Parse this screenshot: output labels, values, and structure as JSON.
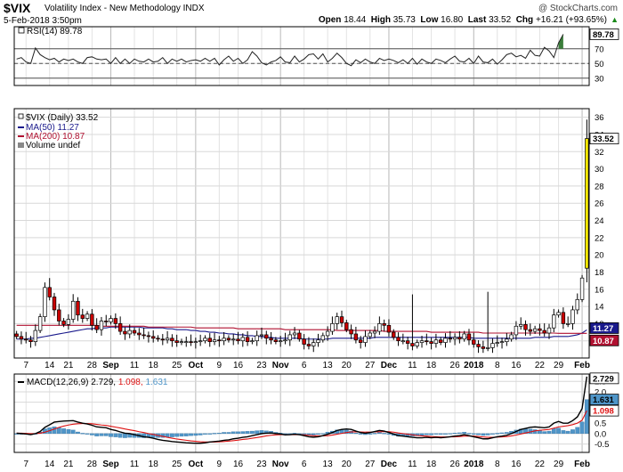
{
  "header": {
    "symbol": "$VIX",
    "name": "Volatility Index - New Methodology",
    "exchange": "INDX",
    "date": "5-Feb-2018 3:50pm",
    "watermark": "@ StockCharts.com",
    "open_label": "Open",
    "open": "18.44",
    "high_label": "High",
    "high": "35.73",
    "low_label": "Low",
    "low": "16.80",
    "last_label": "Last",
    "last": "33.52",
    "chg_label": "Chg",
    "chg": "+16.21 (+93.65%)",
    "chg_arrow": "▲"
  },
  "chart_data": [
    {
      "type": "line",
      "panel": "rsi",
      "legend": "RSI(14) 89.78",
      "last_value_label": "89.78",
      "y_ticks": [
        30,
        50,
        70
      ],
      "ylim": [
        20,
        100
      ],
      "overbought": 70,
      "oversold": 30,
      "values": [
        56,
        58,
        52,
        50,
        71,
        62,
        58,
        55,
        57,
        52,
        56,
        54,
        56,
        52,
        50,
        58,
        59,
        56,
        55,
        56,
        50,
        58,
        50,
        56,
        50,
        56,
        53,
        52,
        56,
        52,
        53,
        58,
        50,
        56,
        53,
        56,
        52,
        54,
        55,
        53,
        57,
        53,
        57,
        48,
        55,
        60,
        53,
        57,
        50,
        55,
        66,
        60,
        51,
        48,
        52,
        54,
        59,
        52,
        51,
        60,
        52,
        56,
        62,
        63,
        56,
        63,
        52,
        57,
        64,
        58,
        50,
        47,
        55,
        51,
        56,
        52,
        50,
        57,
        54,
        56,
        54,
        51,
        55,
        50,
        57,
        49,
        56,
        52,
        50,
        56,
        54,
        51,
        56,
        60,
        53,
        52,
        57,
        50,
        60,
        52,
        51,
        56,
        49,
        55,
        62,
        64,
        59,
        61,
        57,
        68,
        61,
        60,
        72,
        67,
        58,
        78,
        89.78
      ],
      "colors": {
        "line": "#222222",
        "overbought_fill": "#3a7d3a",
        "ref": "#555555"
      }
    },
    {
      "type": "candlestick",
      "panel": "price",
      "title": "$VIX (Daily) 33.52",
      "last_value_label": "33.52",
      "y_ticks": [
        10,
        12,
        14,
        16,
        18,
        20,
        22,
        24,
        26,
        28,
        30,
        32,
        34,
        36
      ],
      "ylim": [
        8,
        37
      ],
      "x_labels": [
        "7",
        "14",
        "21",
        "28",
        "Sep",
        "11",
        "18",
        "25",
        "Oct",
        "9",
        "16",
        "23",
        "Nov",
        "6",
        "13",
        "20",
        "27",
        "Dec",
        "11",
        "18",
        "26",
        "2018",
        "8",
        "16",
        "22",
        "29",
        "Feb"
      ],
      "close": [
        10.5,
        10.2,
        10.1,
        9.9,
        11.2,
        12.8,
        16.2,
        15.1,
        13.6,
        12.3,
        11.9,
        12.5,
        14.6,
        13.0,
        12.6,
        13.1,
        11.8,
        11.3,
        12.3,
        12.2,
        12.6,
        12.0,
        11.1,
        10.8,
        11.2,
        10.9,
        10.7,
        10.6,
        10.5,
        10.3,
        10.2,
        10.1,
        10.3,
        10.0,
        9.8,
        9.9,
        9.9,
        9.8,
        9.9,
        10.0,
        10.3,
        9.9,
        10.1,
        10.0,
        10.3,
        10.1,
        10.2,
        10.0,
        10.4,
        9.9,
        10.0,
        10.6,
        10.7,
        10.3,
        10.1,
        9.9,
        10.0,
        10.1,
        10.7,
        10.9,
        10.2,
        9.6,
        9.4,
        9.8,
        10.1,
        10.6,
        11.1,
        12.0,
        12.8,
        12.1,
        11.3,
        10.8,
        10.1,
        9.8,
        10.5,
        10.9,
        11.1,
        12.0,
        11.8,
        11.0,
        10.4,
        10.0,
        10.0,
        9.7,
        9.4,
        9.8,
        10.0,
        9.9,
        9.7,
        10.1,
        9.8,
        10.3,
        10.2,
        10.4,
        10.2,
        10.8,
        10.1,
        9.6,
        9.3,
        9.1,
        9.2,
        9.7,
        9.8,
        9.9,
        10.2,
        10.7,
        11.7,
        11.9,
        11.3,
        11.1,
        11.4,
        11.2,
        10.9,
        11.5,
        13.0,
        13.3,
        12.0,
        12.0,
        13.6,
        14.8,
        17.3,
        33.52
      ],
      "open_first": 10.8,
      "series": [
        {
          "name": "MA(50)",
          "label": "MA(50) 11.27",
          "last_value_label": "11.27",
          "color": "#1a1a8c",
          "values": [
            10.2,
            10.2,
            10.2,
            10.3,
            10.3,
            10.4,
            10.5,
            10.6,
            10.7,
            10.8,
            10.9,
            11.0,
            11.1,
            11.2,
            11.3,
            11.4,
            11.4,
            11.5,
            11.5,
            11.5,
            11.6,
            11.6,
            11.6,
            11.6,
            11.6,
            11.6,
            11.6,
            11.5,
            11.5,
            11.5,
            11.5,
            11.5,
            11.4,
            11.4,
            11.3,
            11.3,
            11.3,
            11.2,
            11.2,
            11.1,
            11.1,
            11.0,
            11.0,
            10.9,
            10.9,
            10.8,
            10.8,
            10.7,
            10.7,
            10.6,
            10.6,
            10.5,
            10.5,
            10.4,
            10.4,
            10.3,
            10.3,
            10.3,
            10.3,
            10.3,
            10.3,
            10.2,
            10.2,
            10.2,
            10.2,
            10.2,
            10.2,
            10.3,
            10.3,
            10.3,
            10.3,
            10.3,
            10.3,
            10.3,
            10.3,
            10.3,
            10.4,
            10.4,
            10.4,
            10.4,
            10.4,
            10.4,
            10.4,
            10.4,
            10.4,
            10.4,
            10.4,
            10.4,
            10.4,
            10.4,
            10.4,
            10.4,
            10.4,
            10.4,
            10.4,
            10.4,
            10.4,
            10.3,
            10.3,
            10.3,
            10.3,
            10.3,
            10.3,
            10.3,
            10.3,
            10.3,
            10.3,
            10.3,
            10.3,
            10.3,
            10.4,
            10.4,
            10.4,
            10.4,
            10.5,
            10.5,
            10.5,
            10.5,
            10.6,
            10.7,
            10.9,
            11.27
          ]
        },
        {
          "name": "MA(200)",
          "label": "MA(200) 10.87",
          "last_value_label": "10.87",
          "color": "#b01030",
          "values": [
            11.8,
            11.8,
            11.8,
            11.8,
            11.8,
            11.8,
            11.8,
            11.8,
            11.8,
            11.8,
            11.8,
            11.8,
            11.8,
            11.8,
            11.8,
            11.8,
            11.8,
            11.8,
            11.7,
            11.7,
            11.7,
            11.7,
            11.7,
            11.7,
            11.7,
            11.7,
            11.7,
            11.7,
            11.6,
            11.6,
            11.6,
            11.6,
            11.6,
            11.6,
            11.6,
            11.6,
            11.6,
            11.6,
            11.5,
            11.5,
            11.5,
            11.5,
            11.5,
            11.5,
            11.5,
            11.5,
            11.5,
            11.4,
            11.4,
            11.4,
            11.4,
            11.4,
            11.4,
            11.4,
            11.4,
            11.4,
            11.4,
            11.3,
            11.3,
            11.3,
            11.3,
            11.3,
            11.3,
            11.3,
            11.3,
            11.3,
            11.3,
            11.3,
            11.2,
            11.2,
            11.2,
            11.2,
            11.2,
            11.2,
            11.2,
            11.2,
            11.2,
            11.2,
            11.1,
            11.1,
            11.1,
            11.1,
            11.1,
            11.1,
            11.1,
            11.1,
            11.1,
            11.1,
            11.0,
            11.0,
            11.0,
            11.0,
            11.0,
            11.0,
            11.0,
            11.0,
            11.0,
            11.0,
            11.0,
            10.9,
            10.9,
            10.9,
            10.9,
            10.9,
            10.9,
            10.9,
            10.9,
            10.9,
            10.9,
            10.9,
            10.9,
            10.9,
            10.9,
            10.9,
            10.9,
            10.87,
            10.87,
            10.87,
            10.87,
            10.87,
            10.87,
            10.87
          ]
        }
      ],
      "volume_label": "Volume undef",
      "colors": {
        "up_fill": "#ffffff",
        "down_fill": "#cc0000",
        "outline": "#000000",
        "last_bar": "#f2e600"
      }
    },
    {
      "type": "line",
      "panel": "macd",
      "legend_name": "MACD(12,26,9)",
      "legend_values": [
        "2.729",
        "1.098",
        "1.631"
      ],
      "y_ticks": [
        -0.5,
        0,
        0.5,
        1.0,
        1.5,
        2.0,
        2.5
      ],
      "y_tick_labels": [
        "-0.5",
        "0.0",
        "0.5",
        "1.0",
        "1.5",
        "2.0",
        "2.5"
      ],
      "ylim": [
        -0.9,
        2.85
      ],
      "last_value_labels": [
        "2.729",
        "1.631",
        "1.098"
      ],
      "series": [
        {
          "name": "MACD",
          "color": "#000000",
          "values": [
            0.02,
            0.0,
            -0.02,
            -0.05,
            0.0,
            0.1,
            0.3,
            0.42,
            0.55,
            0.58,
            0.6,
            0.61,
            0.62,
            0.55,
            0.5,
            0.46,
            0.4,
            0.32,
            0.3,
            0.28,
            0.2,
            0.15,
            0.08,
            0.02,
            0.0,
            -0.05,
            -0.1,
            -0.15,
            -0.18,
            -0.22,
            -0.28,
            -0.32,
            -0.35,
            -0.38,
            -0.4,
            -0.42,
            -0.44,
            -0.45,
            -0.46,
            -0.46,
            -0.44,
            -0.4,
            -0.38,
            -0.36,
            -0.32,
            -0.3,
            -0.25,
            -0.22,
            -0.18,
            -0.15,
            -0.1,
            -0.05,
            0.0,
            0.02,
            0.03,
            0.0,
            -0.02,
            -0.06,
            -0.05,
            -0.03,
            -0.05,
            -0.1,
            -0.15,
            -0.17,
            -0.15,
            -0.1,
            -0.03,
            0.05,
            0.15,
            0.2,
            0.22,
            0.2,
            0.12,
            0.05,
            0.02,
            0.05,
            0.1,
            0.15,
            0.12,
            0.05,
            -0.02,
            -0.1,
            -0.12,
            -0.15,
            -0.18,
            -0.2,
            -0.2,
            -0.18,
            -0.2,
            -0.18,
            -0.2,
            -0.18,
            -0.15,
            -0.12,
            -0.1,
            -0.05,
            -0.1,
            -0.15,
            -0.2,
            -0.25,
            -0.25,
            -0.2,
            -0.15,
            -0.12,
            -0.08,
            0.0,
            0.1,
            0.2,
            0.25,
            0.3,
            0.32,
            0.3,
            0.28,
            0.32,
            0.5,
            0.58,
            0.5,
            0.5,
            0.62,
            0.8,
            1.2,
            2.729
          ]
        },
        {
          "name": "Signal",
          "color": "#dd1111",
          "values": [
            0.02,
            0.02,
            0.01,
            0.0,
            0.0,
            0.02,
            0.07,
            0.14,
            0.22,
            0.3,
            0.36,
            0.41,
            0.45,
            0.47,
            0.48,
            0.48,
            0.47,
            0.44,
            0.41,
            0.39,
            0.35,
            0.31,
            0.27,
            0.22,
            0.18,
            0.14,
            0.09,
            0.05,
            0.0,
            -0.04,
            -0.09,
            -0.13,
            -0.18,
            -0.22,
            -0.26,
            -0.29,
            -0.32,
            -0.35,
            -0.37,
            -0.39,
            -0.4,
            -0.4,
            -0.4,
            -0.39,
            -0.38,
            -0.36,
            -0.34,
            -0.31,
            -0.28,
            -0.26,
            -0.22,
            -0.19,
            -0.15,
            -0.11,
            -0.08,
            -0.06,
            -0.05,
            -0.05,
            -0.05,
            -0.05,
            -0.05,
            -0.06,
            -0.08,
            -0.1,
            -0.11,
            -0.11,
            -0.1,
            -0.07,
            -0.03,
            0.01,
            0.05,
            0.08,
            0.09,
            0.08,
            0.07,
            0.07,
            0.08,
            0.09,
            0.1,
            0.09,
            0.07,
            0.03,
            0.0,
            -0.03,
            -0.06,
            -0.09,
            -0.11,
            -0.12,
            -0.14,
            -0.15,
            -0.16,
            -0.16,
            -0.16,
            -0.15,
            -0.14,
            -0.12,
            -0.12,
            -0.12,
            -0.14,
            -0.16,
            -0.18,
            -0.18,
            -0.17,
            -0.16,
            -0.14,
            -0.11,
            -0.07,
            -0.02,
            0.03,
            0.08,
            0.13,
            0.16,
            0.18,
            0.2,
            0.26,
            0.32,
            0.35,
            0.38,
            0.43,
            0.5,
            0.64,
            1.098
          ]
        }
      ],
      "histogram_name": "Histogram",
      "histogram_color": "#4f95c8",
      "x_labels": [
        "7",
        "14",
        "21",
        "28",
        "Sep",
        "11",
        "18",
        "25",
        "Oct",
        "9",
        "16",
        "23",
        "Nov",
        "6",
        "13",
        "20",
        "27",
        "Dec",
        "11",
        "18",
        "26",
        "2018",
        "8",
        "16",
        "22",
        "29",
        "Feb"
      ]
    }
  ]
}
